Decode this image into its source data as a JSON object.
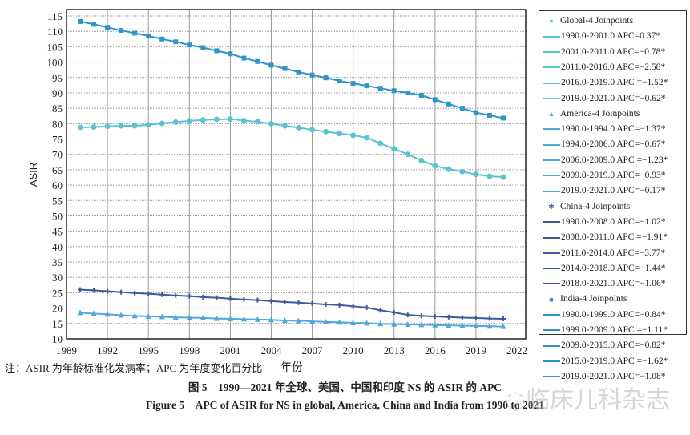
{
  "chart_data": {
    "type": "line",
    "title": "",
    "xlabel": "年份",
    "ylabel": "ASIR",
    "xlim": [
      1989,
      2022
    ],
    "ylim": [
      10,
      115
    ],
    "xticks": [
      1989,
      1992,
      1995,
      1998,
      2001,
      2004,
      2007,
      2010,
      2013,
      2016,
      2019,
      2022
    ],
    "yticks": [
      10,
      15,
      20,
      25,
      30,
      35,
      40,
      45,
      50,
      55,
      60,
      65,
      70,
      75,
      80,
      85,
      90,
      95,
      100,
      105,
      110,
      115
    ],
    "grid": true,
    "legend_placement": "right",
    "x": [
      1990,
      1991,
      1992,
      1993,
      1994,
      1995,
      1996,
      1997,
      1998,
      1999,
      2000,
      2001,
      2002,
      2003,
      2004,
      2005,
      2006,
      2007,
      2008,
      2009,
      2010,
      2011,
      2012,
      2013,
      2014,
      2015,
      2016,
      2017,
      2018,
      2019,
      2020,
      2021
    ],
    "series": [
      {
        "name": "Global-4 Joinpoints",
        "marker": "circle",
        "color": "#5bc4cf",
        "values": [
          78.8,
          78.9,
          79.1,
          79.3,
          79.3,
          79.6,
          80.1,
          80.5,
          80.9,
          81.2,
          81.4,
          81.5,
          81.0,
          80.6,
          80.0,
          79.3,
          78.7,
          78.0,
          77.4,
          76.8,
          76.2,
          75.4,
          73.6,
          71.8,
          70.0,
          68.0,
          66.3,
          65.2,
          64.4,
          63.5,
          62.9,
          62.6
        ],
        "segments": [
          "1990.0-2001.0 APC=0.37*",
          "2001.0-2011.0 APC=−0.78*",
          "2011.0-2016.0 APC=−2.58*",
          "2016.0-2019.0 APC =−1.52*",
          "2019.0-2021.0 APC=−0.62*"
        ]
      },
      {
        "name": "America-4 Joinpoints",
        "marker": "triangle",
        "color": "#4fa8dc",
        "values": [
          18.5,
          18.2,
          18.0,
          17.7,
          17.5,
          17.3,
          17.2,
          17.0,
          16.9,
          16.8,
          16.6,
          16.5,
          16.4,
          16.3,
          16.2,
          16.0,
          15.9,
          15.7,
          15.5,
          15.4,
          15.2,
          15.1,
          14.9,
          14.8,
          14.7,
          14.6,
          14.5,
          14.4,
          14.3,
          14.2,
          14.1,
          14.0
        ],
        "segments": [
          "1990.0-1994.0 APC=−1.37*",
          "1994.0-2006.0 APC=−0.67*",
          "2006.0-2009.0 APC =−1.23*",
          "2009.0-2019.0 APC=−0.93*",
          "2019.0-2021.0 APC=−0.17*"
        ]
      },
      {
        "name": "China-4 Joinpoints",
        "marker": "star",
        "color": "#3d5a9e",
        "values": [
          26.0,
          25.8,
          25.5,
          25.2,
          24.9,
          24.7,
          24.4,
          24.1,
          23.9,
          23.6,
          23.4,
          23.1,
          22.8,
          22.6,
          22.3,
          22.0,
          21.8,
          21.5,
          21.2,
          21.0,
          20.6,
          20.2,
          19.3,
          18.6,
          17.8,
          17.5,
          17.3,
          17.1,
          16.9,
          16.8,
          16.6,
          16.5
        ],
        "segments": [
          "1990.0-2008.0 APC=−1.02*",
          "2008.0-2011.0 APC =−1.91*",
          "2011.0-2014.0 APC=−3.77*",
          "2014.0-2018.0 APC=−1.44*",
          "2018.0-2021.0 APC=−1.06*"
        ]
      },
      {
        "name": "India-4 Joinpoints",
        "marker": "square",
        "color": "#2e95c9",
        "values": [
          113.2,
          112.3,
          111.3,
          110.3,
          109.4,
          108.5,
          107.5,
          106.6,
          105.6,
          104.7,
          103.7,
          102.7,
          101.3,
          100.2,
          99.0,
          97.9,
          96.8,
          95.8,
          94.9,
          93.9,
          93.1,
          92.3,
          91.5,
          90.7,
          90.0,
          89.2,
          87.8,
          86.4,
          85.0,
          83.6,
          82.7,
          81.8
        ],
        "segments": [
          "1990.0-1999.0 APC=−0.84*",
          "1999.0-2009.0 APC =−1.11*",
          "2009.0-2015.0 APC=−0.82*",
          "2015.0-2019.0 APC =−1.62*",
          "2019.0-2021.0 APC=−1.08*"
        ]
      }
    ]
  },
  "legend_headers": [
    "Global-4 Joinpoints",
    "America-4 Joinpoints",
    "China-4 Joinpoints",
    "India-4 Joinpolnts"
  ],
  "note": "注：ASIR 为年龄标准化发病率；APC 为年度变化百分比",
  "caption_cn": "图 5　1990—2021 年全球、美国、中国和印度 NS 的 ASIR 的 APC",
  "caption_en": "Figure 5　APC of ASIR for NS in global, America, China and India from 1990 to 2021",
  "watermark": "@临床儿科杂志"
}
